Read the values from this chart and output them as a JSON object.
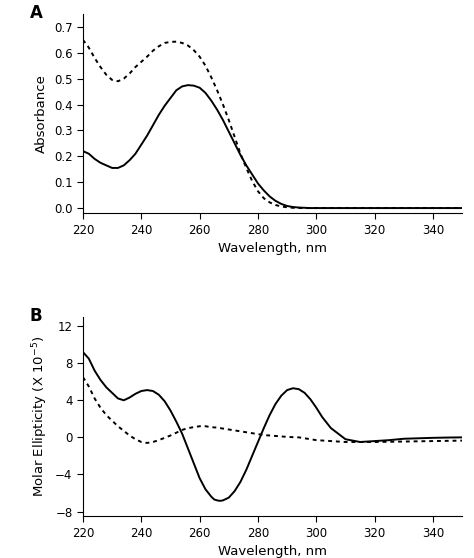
{
  "panel_A_label": "A",
  "panel_B_label": "B",
  "xlabel": "Wavelength, nm",
  "ylabel_A": "Absorbance",
  "ylabel_B_plain": "Molar Ellipticity (X 10$^{-5}$)",
  "xlim": [
    220,
    350
  ],
  "ylim_A": [
    -0.02,
    0.75
  ],
  "ylim_B": [
    -8.5,
    13
  ],
  "yticks_A": [
    0.0,
    0.1,
    0.2,
    0.3,
    0.4,
    0.5,
    0.6,
    0.7
  ],
  "yticks_B": [
    -8,
    -4,
    0,
    4,
    8,
    12
  ],
  "xticks": [
    220,
    240,
    260,
    280,
    300,
    320,
    340
  ],
  "line_color": "black",
  "background_color": "white",
  "solid_A_x": [
    220,
    222,
    224,
    226,
    228,
    230,
    232,
    234,
    236,
    238,
    240,
    242,
    244,
    246,
    248,
    250,
    252,
    254,
    256,
    258,
    260,
    262,
    264,
    266,
    268,
    270,
    272,
    274,
    276,
    278,
    280,
    282,
    284,
    286,
    288,
    290,
    292,
    294,
    296,
    298,
    300,
    305,
    310,
    320,
    330,
    340,
    350
  ],
  "solid_A_y": [
    0.22,
    0.21,
    0.19,
    0.175,
    0.165,
    0.155,
    0.155,
    0.165,
    0.185,
    0.21,
    0.245,
    0.28,
    0.32,
    0.36,
    0.395,
    0.425,
    0.455,
    0.47,
    0.475,
    0.473,
    0.465,
    0.445,
    0.415,
    0.38,
    0.34,
    0.295,
    0.25,
    0.205,
    0.165,
    0.13,
    0.095,
    0.068,
    0.045,
    0.028,
    0.016,
    0.008,
    0.004,
    0.002,
    0.001,
    0.0,
    0.0,
    0.0,
    0.0,
    0.0,
    0.0,
    0.0,
    0.0
  ],
  "dotted_A_x": [
    220,
    222,
    224,
    226,
    228,
    230,
    232,
    234,
    236,
    238,
    240,
    242,
    244,
    246,
    248,
    250,
    252,
    254,
    256,
    258,
    260,
    262,
    264,
    266,
    268,
    270,
    272,
    274,
    276,
    278,
    280,
    282,
    284,
    286,
    288,
    290,
    292,
    294,
    296,
    298,
    300,
    305,
    310,
    320,
    330,
    340,
    350
  ],
  "dotted_A_y": [
    0.65,
    0.62,
    0.58,
    0.545,
    0.515,
    0.495,
    0.49,
    0.5,
    0.52,
    0.545,
    0.565,
    0.585,
    0.608,
    0.625,
    0.638,
    0.642,
    0.643,
    0.638,
    0.628,
    0.61,
    0.585,
    0.55,
    0.505,
    0.455,
    0.4,
    0.34,
    0.275,
    0.21,
    0.155,
    0.105,
    0.065,
    0.038,
    0.022,
    0.012,
    0.006,
    0.003,
    0.001,
    0.0,
    0.0,
    0.0,
    0.0,
    0.0,
    0.0,
    0.0,
    0.0,
    0.0,
    0.0
  ],
  "solid_B_x": [
    220,
    222,
    224,
    226,
    228,
    230,
    232,
    234,
    236,
    238,
    240,
    242,
    244,
    246,
    248,
    250,
    252,
    254,
    256,
    258,
    260,
    262,
    264,
    265,
    266,
    267,
    268,
    270,
    272,
    274,
    276,
    278,
    280,
    282,
    284,
    286,
    288,
    290,
    292,
    294,
    296,
    298,
    300,
    302,
    305,
    310,
    315,
    320,
    325,
    330,
    335,
    340,
    345,
    350
  ],
  "solid_B_y": [
    9.2,
    8.5,
    7.2,
    6.2,
    5.4,
    4.8,
    4.2,
    4.0,
    4.3,
    4.7,
    5.0,
    5.1,
    5.0,
    4.6,
    3.9,
    2.9,
    1.7,
    0.4,
    -1.2,
    -2.8,
    -4.4,
    -5.6,
    -6.4,
    -6.7,
    -6.8,
    -6.85,
    -6.8,
    -6.5,
    -5.8,
    -4.8,
    -3.5,
    -2.0,
    -0.5,
    1.0,
    2.4,
    3.6,
    4.5,
    5.1,
    5.3,
    5.2,
    4.8,
    4.1,
    3.2,
    2.2,
    1.0,
    -0.2,
    -0.5,
    -0.4,
    -0.3,
    -0.15,
    -0.1,
    -0.05,
    -0.02,
    0.0
  ],
  "dotted_B_x": [
    220,
    222,
    224,
    226,
    228,
    230,
    232,
    234,
    236,
    238,
    240,
    242,
    244,
    246,
    248,
    250,
    252,
    254,
    256,
    258,
    260,
    262,
    264,
    266,
    268,
    270,
    272,
    274,
    276,
    278,
    280,
    282,
    284,
    286,
    288,
    290,
    292,
    294,
    296,
    298,
    300,
    305,
    310,
    320,
    330,
    340,
    350
  ],
  "dotted_B_y": [
    6.5,
    5.5,
    4.2,
    3.2,
    2.4,
    1.8,
    1.2,
    0.7,
    0.2,
    -0.2,
    -0.5,
    -0.6,
    -0.5,
    -0.3,
    -0.05,
    0.2,
    0.5,
    0.8,
    1.0,
    1.1,
    1.2,
    1.2,
    1.1,
    1.05,
    0.95,
    0.85,
    0.75,
    0.65,
    0.55,
    0.45,
    0.35,
    0.25,
    0.2,
    0.15,
    0.1,
    0.05,
    0.02,
    0.0,
    -0.1,
    -0.2,
    -0.3,
    -0.4,
    -0.5,
    -0.5,
    -0.45,
    -0.4,
    -0.35
  ]
}
